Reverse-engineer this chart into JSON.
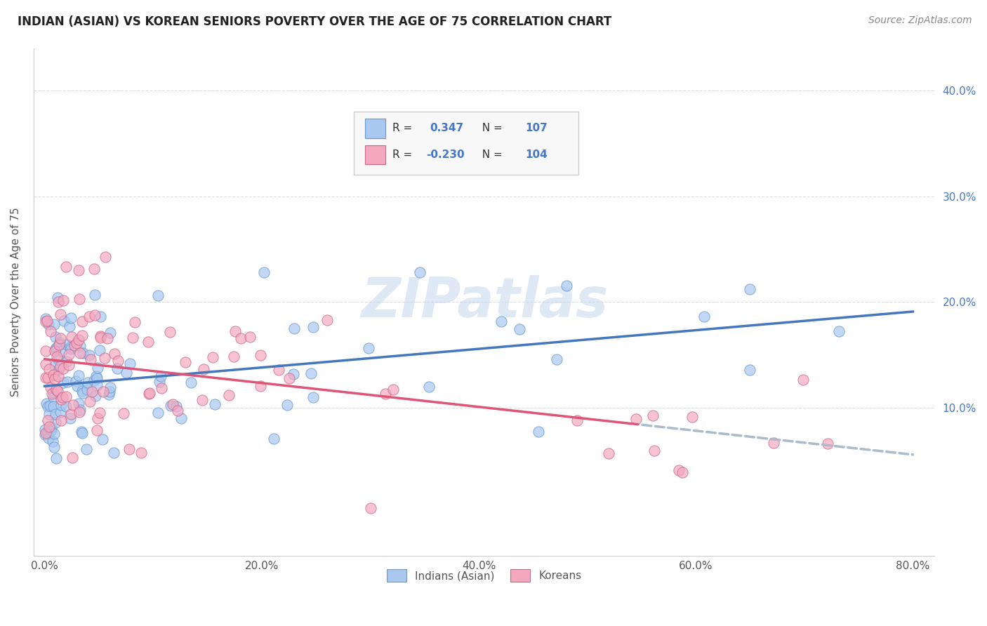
{
  "title": "INDIAN (ASIAN) VS KOREAN SENIORS POVERTY OVER THE AGE OF 75 CORRELATION CHART",
  "source": "Source: ZipAtlas.com",
  "xlabel_ticks": [
    "0.0%",
    "20.0%",
    "40.0%",
    "60.0%",
    "80.0%"
  ],
  "xlabel_tick_vals": [
    0.0,
    0.2,
    0.4,
    0.6,
    0.8
  ],
  "ylabel": "Seniors Poverty Over the Age of 75",
  "ylabel_ticks": [
    "10.0%",
    "20.0%",
    "30.0%",
    "40.0%"
  ],
  "ylabel_tick_vals": [
    0.1,
    0.2,
    0.3,
    0.4
  ],
  "xlim": [
    -0.01,
    0.82
  ],
  "ylim": [
    -0.04,
    0.44
  ],
  "legend_label1": "Indians (Asian)",
  "legend_label2": "Koreans",
  "R1": 0.347,
  "N1": 107,
  "R2": -0.23,
  "N2": 104,
  "dot_color1": "#A8C8F0",
  "dot_color2": "#F4A8C0",
  "dot_edge1": "#6699CC",
  "dot_edge2": "#CC6688",
  "line_color1": "#4477BB",
  "line_color2": "#DD5577",
  "line_color2_dashed": "#AABBCC",
  "watermark": "ZIPatlas",
  "title_fontsize": 12,
  "source_fontsize": 10,
  "background_color": "#FFFFFF",
  "grid_color": "#DDDDDD",
  "stats_blue": "#4477CC",
  "stats_dark": "#333333"
}
